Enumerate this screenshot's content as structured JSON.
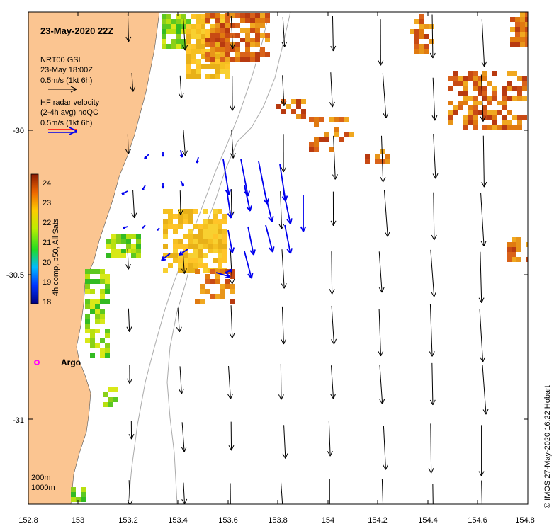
{
  "title": "23-May-2020 22Z",
  "legend": {
    "model_name": "NRT00 GSL",
    "model_time": "23-May 18:00Z",
    "model_scale": "0.5m/s (1kt 6h)",
    "radar_line1": "HF radar velocity",
    "radar_line2": "(2-4h avg) noQC",
    "radar_scale": "0.5m/s (1kt 6h)"
  },
  "colorbar": {
    "label": "4h comp, p50, All Sats",
    "ticks": [
      "24",
      "23",
      "22",
      "21",
      "20",
      "19",
      "18"
    ]
  },
  "axes": {
    "x_ticks": [
      "152.8",
      "153",
      "153.2",
      "153.4",
      "153.6",
      "153.8",
      "154",
      "154.2",
      "154.4",
      "154.6",
      "154.8"
    ],
    "y_ticks": [
      "-30",
      "-30.5",
      "-31"
    ]
  },
  "argo_label": "Argo",
  "depth_labels": [
    "200m",
    "1000m"
  ],
  "credit": "© IMOS 27-May-2020 16:22 Hobart",
  "colors": {
    "land": "#fbc591",
    "model_arrow": "#000000",
    "radar_arrow": "#0000ee",
    "argo": "#ff00ff"
  }
}
